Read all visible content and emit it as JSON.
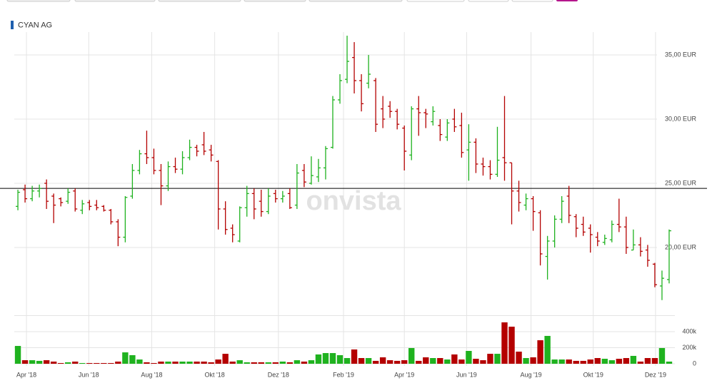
{
  "chart_data": {
    "type": "ohlc",
    "name": "CYAN AG",
    "watermark": "onvista",
    "legend_color": "#1f5fae",
    "up_color": "#1fb21f",
    "down_color": "#b40000",
    "grid": true,
    "reference_line": 24.6,
    "x": [
      0,
      1,
      2,
      3,
      4,
      5,
      6,
      7,
      8,
      9,
      10,
      11,
      12,
      13,
      14,
      15,
      16,
      17,
      18,
      19,
      20,
      21,
      22,
      23,
      24,
      25,
      26,
      27,
      28,
      29,
      30,
      31,
      32,
      33,
      34,
      35,
      36,
      37,
      38,
      39,
      40,
      41,
      42,
      43,
      44,
      45,
      46,
      47,
      48,
      49,
      50,
      51,
      52,
      53,
      54,
      55,
      56,
      57,
      58,
      59,
      60,
      61,
      62,
      63,
      64,
      65,
      66,
      67,
      68,
      69,
      70,
      71,
      72,
      73,
      74,
      75,
      76,
      77,
      78,
      79,
      80,
      81,
      82,
      83,
      84,
      85,
      86,
      87,
      88,
      89,
      90,
      91
    ],
    "open": [
      23.2,
      24.5,
      23.8,
      24.4,
      25.0,
      24.0,
      23.8,
      23.6,
      24.4,
      22.9,
      23.5,
      23.3,
      23.2,
      22.9,
      22.0,
      20.8,
      24.0,
      26.0,
      27.3,
      27.0,
      26.0,
      24.8,
      26.3,
      26.1,
      27.0,
      27.8,
      28.0,
      27.6,
      26.7,
      23.0,
      21.5,
      20.5,
      23.1,
      24.2,
      23.6,
      22.8,
      24.2,
      23.8,
      24.2,
      23.3,
      26.0,
      25.0,
      25.5,
      26.2,
      27.8,
      31.5,
      33.1,
      34.8,
      33.0,
      32.8,
      33.0,
      30.8,
      31.0,
      30.6,
      29.3,
      27.2,
      30.8,
      30.5,
      29.8,
      29.5,
      28.6,
      30.0,
      29.5,
      27.6,
      28.2,
      26.5,
      26.3,
      25.7,
      27.0,
      26.6,
      24.4,
      23.3,
      23.8,
      22.7,
      19.3,
      20.5,
      22.2,
      24.0,
      22.4,
      21.8,
      21.5,
      20.8,
      20.4,
      20.6,
      21.8,
      21.6,
      19.8,
      20.2,
      19.8,
      18.7,
      17.0,
      17.5
    ],
    "high": [
      24.5,
      24.9,
      24.8,
      24.9,
      25.3,
      24.2,
      23.9,
      24.6,
      24.6,
      23.7,
      23.7,
      23.7,
      23.3,
      23.0,
      22.2,
      24.0,
      26.5,
      27.6,
      29.1,
      27.7,
      26.5,
      26.7,
      27.0,
      27.5,
      28.4,
      28.0,
      29.0,
      28.0,
      26.8,
      23.6,
      21.8,
      23.2,
      24.8,
      24.6,
      24.5,
      24.6,
      24.5,
      24.4,
      24.6,
      26.5,
      26.5,
      27.1,
      26.9,
      27.9,
      31.8,
      33.5,
      36.5,
      36.0,
      33.5,
      35.0,
      33.2,
      31.8,
      31.4,
      30.8,
      29.5,
      31.0,
      31.8,
      30.8,
      31.0,
      30.0,
      30.0,
      30.8,
      30.5,
      29.6,
      28.5,
      27.0,
      26.8,
      29.4,
      31.8,
      26.6,
      25.2,
      24.2,
      24.0,
      22.9,
      20.9,
      22.5,
      24.0,
      24.8,
      22.6,
      22.4,
      21.8,
      21.2,
      21.0,
      22.1,
      23.8,
      22.4,
      21.4,
      20.8,
      20.2,
      18.8,
      18.2,
      21.4
    ],
    "low": [
      22.9,
      23.5,
      23.6,
      23.9,
      23.0,
      21.9,
      23.2,
      23.4,
      22.8,
      22.6,
      22.9,
      22.9,
      22.8,
      21.8,
      20.1,
      20.4,
      23.8,
      25.7,
      26.5,
      25.7,
      23.3,
      24.4,
      25.8,
      25.7,
      26.8,
      27.1,
      27.2,
      26.7,
      21.4,
      21.0,
      20.4,
      20.4,
      22.4,
      22.2,
      22.4,
      22.6,
      23.5,
      23.5,
      23.0,
      23.0,
      24.7,
      24.9,
      25.1,
      25.3,
      27.7,
      31.2,
      32.8,
      32.0,
      30.6,
      32.4,
      29.0,
      29.3,
      30.1,
      29.2,
      26.0,
      26.8,
      28.7,
      29.3,
      29.5,
      28.3,
      28.3,
      29.0,
      27.0,
      25.2,
      25.8,
      25.6,
      25.3,
      25.5,
      25.2,
      21.8,
      22.8,
      22.9,
      21.3,
      18.6,
      17.5,
      20.0,
      21.9,
      21.9,
      20.8,
      20.9,
      19.6,
      20.1,
      20.2,
      20.4,
      21.2,
      19.5,
      19.8,
      19.3,
      18.5,
      16.9,
      15.9,
      17.2
    ],
    "close": [
      24.3,
      23.8,
      24.4,
      24.6,
      23.6,
      23.3,
      23.5,
      24.3,
      23.0,
      23.4,
      23.2,
      23.1,
      22.9,
      22.0,
      20.8,
      23.9,
      26.0,
      27.3,
      27.0,
      26.0,
      24.8,
      26.3,
      26.1,
      27.0,
      27.8,
      27.5,
      27.5,
      27.2,
      23.0,
      21.4,
      21.0,
      23.1,
      24.2,
      23.0,
      22.8,
      24.0,
      23.8,
      24.0,
      23.1,
      25.8,
      25.1,
      25.6,
      26.2,
      27.7,
      31.5,
      33.0,
      34.5,
      33.0,
      31.2,
      33.5,
      29.6,
      30.0,
      30.6,
      29.6,
      27.5,
      30.8,
      30.5,
      30.4,
      30.6,
      28.8,
      29.7,
      29.4,
      27.4,
      28.2,
      26.5,
      26.3,
      25.7,
      26.8,
      26.6,
      24.4,
      23.5,
      23.8,
      22.8,
      19.5,
      20.5,
      22.2,
      23.6,
      22.5,
      21.5,
      21.2,
      21.0,
      20.5,
      20.7,
      21.8,
      21.6,
      20.0,
      20.2,
      19.7,
      19.0,
      17.1,
      17.6,
      21.3
    ],
    "xlim": [
      -2.5,
      91.8
    ],
    "xticks": [
      {
        "value": 1.2,
        "label": "Apr '18"
      },
      {
        "value": 9.9,
        "label": "Jun '18"
      },
      {
        "value": 18.7,
        "label": "Aug '18"
      },
      {
        "value": 27.5,
        "label": "Okt '18"
      },
      {
        "value": 36.4,
        "label": "Dez '18"
      },
      {
        "value": 45.5,
        "label": "Feb '19"
      },
      {
        "value": 54.0,
        "label": "Apr '19"
      },
      {
        "value": 62.7,
        "label": "Jun '19"
      },
      {
        "value": 71.7,
        "label": "Aug '19"
      },
      {
        "value": 80.4,
        "label": "Okt '19"
      },
      {
        "value": 89.1,
        "label": "Dez '19"
      }
    ],
    "ylim": [
      14.83,
      36.78
    ],
    "yticks": [
      {
        "value": 20,
        "label": "20,00 EUR"
      },
      {
        "value": 25,
        "label": "25,00 EUR"
      },
      {
        "value": 30,
        "label": "30,00 EUR"
      },
      {
        "value": 35,
        "label": "35,00 EUR"
      }
    ],
    "volume": {
      "values": [
        222000,
        44000,
        44000,
        36000,
        44000,
        27000,
        9000,
        18000,
        27000,
        9000,
        9000,
        9000,
        9000,
        9000,
        27000,
        142000,
        107000,
        53000,
        18000,
        9000,
        27000,
        27000,
        27000,
        27000,
        27000,
        27000,
        27000,
        18000,
        53000,
        124000,
        27000,
        44000,
        18000,
        18000,
        18000,
        18000,
        18000,
        27000,
        18000,
        44000,
        27000,
        44000,
        116000,
        133000,
        133000,
        107000,
        71000,
        178000,
        71000,
        71000,
        36000,
        80000,
        44000,
        36000,
        44000,
        196000,
        36000,
        80000,
        71000,
        71000,
        53000,
        116000,
        53000,
        160000,
        62000,
        44000,
        124000,
        124000,
        516000,
        462000,
        151000,
        71000,
        80000,
        293000,
        347000,
        53000,
        53000,
        53000,
        36000,
        36000,
        53000,
        71000,
        62000,
        44000,
        62000,
        71000,
        98000,
        27000,
        71000,
        71000,
        196000,
        27000
      ],
      "ylim": [
        0,
        600000
      ],
      "yticks": [
        0,
        {
          "value": 200000,
          "label": "200k"
        },
        {
          "value": 400000,
          "label": "400k"
        }
      ]
    }
  }
}
